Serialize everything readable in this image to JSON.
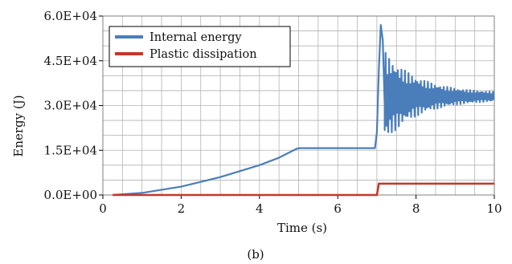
{
  "caption": "(b)",
  "colors": {
    "internal": "#4a7ebb",
    "plastic": "#c0392b",
    "grid": "#b3b3b3",
    "frame": "#7f7f7f"
  },
  "chart_data": {
    "type": "line",
    "xlabel": "Time (s)",
    "ylabel": "Energy (J)",
    "xlim": [
      0,
      10
    ],
    "ylim": [
      0,
      60000
    ],
    "x_ticks": [
      0,
      2,
      4,
      6,
      8,
      10
    ],
    "x_tick_labels": [
      "0",
      "2",
      "4",
      "6",
      "8",
      "10"
    ],
    "y_ticks": [
      0,
      15000,
      30000,
      45000,
      60000
    ],
    "y_tick_labels": [
      "0.0E+00",
      "1.5E+04",
      "3.0E+04",
      "4.5E+04",
      "6.0E+04"
    ],
    "grid": true,
    "legend_position": "top-left",
    "series": [
      {
        "name": "Internal energy",
        "color": "#4a7ebb",
        "x": [
          0.25,
          1,
          2,
          3,
          4,
          4.5,
          4.95,
          5.0,
          6.95,
          7.0,
          7.05,
          7.1,
          7.15,
          7.2,
          7.3,
          7.4,
          7.5,
          7.6,
          7.8,
          8.0,
          8.5,
          9.0,
          9.5,
          10.0
        ],
        "y": [
          0,
          700,
          2800,
          6000,
          10000,
          12500,
          15500,
          15700,
          15700,
          21000,
          42000,
          57000,
          52000,
          30000,
          47000,
          24000,
          44000,
          26000,
          40000,
          29000,
          36000,
          31000,
          33500,
          33000
        ],
        "oscillation": {
          "x_start": 7.0,
          "x_end": 10.0,
          "center": 33000,
          "amp_start": 14000,
          "amp_end": 1000
        }
      },
      {
        "name": "Plastic dissipation",
        "color": "#c0392b",
        "x": [
          0.25,
          7.0,
          7.05,
          10.0
        ],
        "y": [
          0,
          0,
          3800,
          3800
        ]
      }
    ]
  }
}
